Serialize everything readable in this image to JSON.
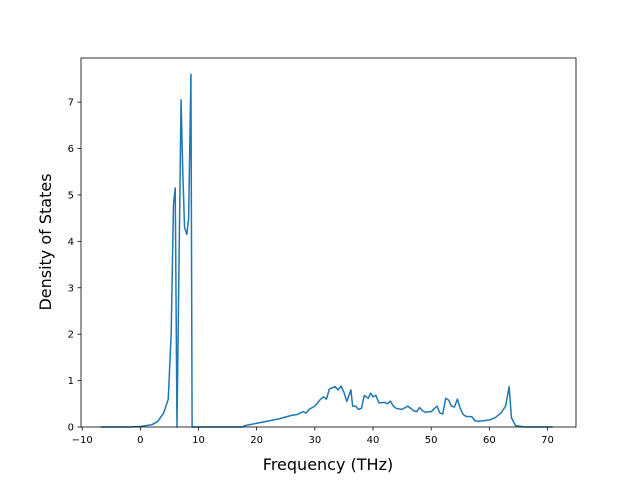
{
  "chart_data": {
    "type": "line",
    "x_label": "Frequency (THz)",
    "y_label": "Density of States",
    "xlim": [
      -10.2,
      74.9
    ],
    "ylim": [
      0,
      7.95
    ],
    "xticks": [
      {
        "value": -10,
        "label": "−10"
      },
      0,
      10,
      20,
      30,
      40,
      50,
      60,
      70
    ],
    "yticks": [
      0,
      1,
      2,
      3,
      4,
      5,
      6,
      7
    ],
    "grid": false,
    "series": [
      {
        "color": "#1f77b4",
        "x": [
          -6.8,
          -2,
          0,
          2,
          3,
          4,
          4.8,
          5.3,
          5.7,
          6.0,
          6.3,
          6.8,
          7.0,
          7.3,
          7.6,
          8.0,
          8.3,
          8.7,
          8.9,
          9.5,
          17.5,
          18,
          20,
          22,
          24,
          26,
          27,
          28,
          28.5,
          29,
          30,
          31,
          31.5,
          32,
          32.5,
          33.5,
          34,
          34.5,
          35,
          35.5,
          36.2,
          36.5,
          37,
          37.5,
          38,
          38.5,
          39.2,
          39.6,
          40,
          40.5,
          41,
          42,
          42.5,
          43,
          43.5,
          44,
          45,
          46,
          47,
          47.5,
          48,
          48.5,
          49,
          50,
          51,
          51.5,
          52,
          52.5,
          53,
          53.5,
          54,
          54.5,
          55,
          55.5,
          56,
          57,
          57.5,
          58,
          60,
          61,
          62,
          62.8,
          63.4,
          63.8,
          64.5,
          66,
          70.9
        ],
        "values": [
          0,
          0,
          0.01,
          0.05,
          0.12,
          0.3,
          0.6,
          2,
          4.8,
          5.15,
          0,
          5,
          7.05,
          5.5,
          4.3,
          4.15,
          4.5,
          7.6,
          0,
          0,
          0,
          0.03,
          0.08,
          0.13,
          0.18,
          0.25,
          0.27,
          0.33,
          0.3,
          0.38,
          0.45,
          0.6,
          0.65,
          0.6,
          0.82,
          0.87,
          0.8,
          0.88,
          0.75,
          0.55,
          0.8,
          0.45,
          0.45,
          0.38,
          0.4,
          0.68,
          0.62,
          0.73,
          0.65,
          0.68,
          0.52,
          0.53,
          0.5,
          0.56,
          0.45,
          0.4,
          0.38,
          0.45,
          0.35,
          0.33,
          0.42,
          0.35,
          0.32,
          0.33,
          0.45,
          0.3,
          0.28,
          0.62,
          0.58,
          0.45,
          0.43,
          0.6,
          0.4,
          0.27,
          0.23,
          0.22,
          0.14,
          0.12,
          0.15,
          0.2,
          0.3,
          0.45,
          0.87,
          0.2,
          0.03,
          0,
          0
        ]
      }
    ]
  }
}
